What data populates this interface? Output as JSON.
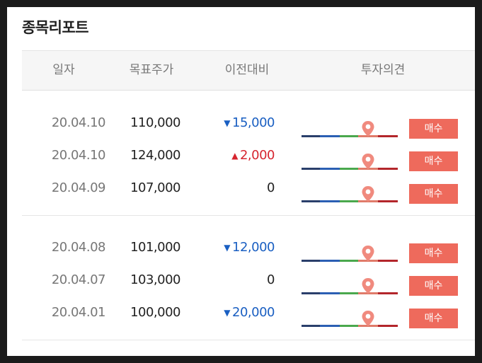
{
  "title": "종목리포트",
  "headers": {
    "date": "일자",
    "target": "목표주가",
    "change": "이전대비",
    "opinion": "투자의견"
  },
  "colors": {
    "down": "#1a5fc2",
    "up": "#d6252f",
    "badge": "#ee6a5c",
    "pin": "#f08a7e"
  },
  "groups": [
    {
      "rows": [
        {
          "date": "20.04.10",
          "target": "110,000",
          "direction": "down",
          "arrow": "▼",
          "change": "15,000",
          "opinion": "매수"
        },
        {
          "date": "20.04.10",
          "target": "124,000",
          "direction": "up",
          "arrow": "▲",
          "change": "2,000",
          "opinion": "매수"
        },
        {
          "date": "20.04.09",
          "target": "107,000",
          "direction": "flat",
          "arrow": "",
          "change": "0",
          "opinion": "매수"
        }
      ]
    },
    {
      "rows": [
        {
          "date": "20.04.08",
          "target": "101,000",
          "direction": "down",
          "arrow": "▼",
          "change": "12,000",
          "opinion": "매수"
        },
        {
          "date": "20.04.07",
          "target": "103,000",
          "direction": "flat",
          "arrow": "",
          "change": "0",
          "opinion": "매수"
        },
        {
          "date": "20.04.01",
          "target": "100,000",
          "direction": "down",
          "arrow": "▼",
          "change": "20,000",
          "opinion": "매수"
        }
      ]
    }
  ]
}
